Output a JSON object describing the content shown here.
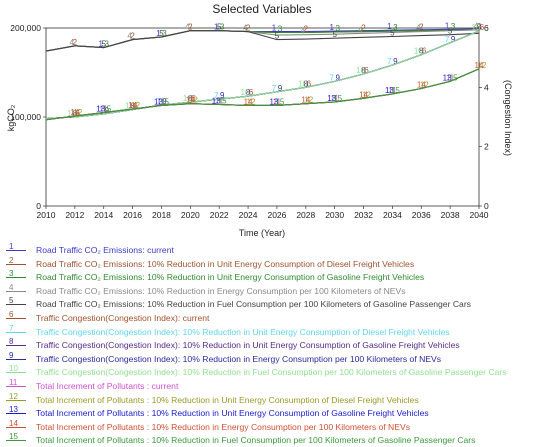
{
  "chart_data": {
    "type": "line",
    "title": "Selected Variables",
    "xlabel": "Time (Year)",
    "ylabel_left": "kgCO₂",
    "ylabel_right": "(Congestion Index)",
    "x_ticks": [
      2010,
      2012,
      2014,
      2016,
      2018,
      2020,
      2022,
      2024,
      2026,
      2028,
      2030,
      2032,
      2034,
      2036,
      2038,
      2040
    ],
    "xlim": [
      2010,
      2040
    ],
    "y_left_ticks": [
      "0",
      "100,000",
      "200,000"
    ],
    "ylim_left": [
      0,
      200000
    ],
    "y_right_ticks": [
      "0",
      "2",
      "4",
      "6"
    ],
    "ylim_right": [
      0,
      6
    ],
    "x": [
      2010,
      2012,
      2014,
      2016,
      2018,
      2020,
      2022,
      2024,
      2026,
      2028,
      2030,
      2032,
      2034,
      2036,
      2038,
      2040
    ],
    "series": [
      {
        "marker": "1",
        "name": "Road Traffic CO₂ Emissions: current",
        "color": "#3b3bc8",
        "axis": "left",
        "values": [
          174000,
          180000,
          178000,
          187000,
          190000,
          197000,
          197000,
          196000,
          196000,
          196000,
          196500,
          197000,
          197500,
          198000,
          198500,
          199000
        ]
      },
      {
        "marker": "2",
        "name": "Road Traffic CO₂ Emissions: 10% Reduction in Unit Energy Consumption of Diesel Freight Vehicles",
        "color": "#a0522d",
        "axis": "left",
        "values": [
          174000,
          180000,
          178000,
          187000,
          190000,
          197000,
          197000,
          196000,
          195000,
          195000,
          195500,
          196000,
          196500,
          197000,
          197500,
          198000
        ]
      },
      {
        "marker": "3",
        "name": "Road Traffic CO₂ Emissions: 10% Reduction in Unit Energy Consumption of Gasoline Freight Vehicles",
        "color": "#2e8b2e",
        "axis": "left",
        "values": [
          174000,
          180000,
          178000,
          187000,
          190000,
          197000,
          197000,
          196000,
          195000,
          195000,
          195500,
          196000,
          196500,
          197000,
          197500,
          198000
        ]
      },
      {
        "marker": "4",
        "name": "Road Traffic CO₂ Emissions: 10% Reduction in Energy Consumption per 100 Kilometers of NEVs",
        "color": "#8a8a8a",
        "axis": "left",
        "values": [
          174000,
          180000,
          178000,
          187000,
          190000,
          197000,
          197000,
          196000,
          192000,
          192500,
          193000,
          194000,
          195000,
          196000,
          197000,
          198000
        ]
      },
      {
        "marker": "5",
        "name": "Road Traffic CO₂ Emissions: 10% Reduction in Fuel Consumption per 100 Kilometers of Gasoline Passenger Cars",
        "color": "#444444",
        "axis": "left",
        "values": [
          174000,
          180000,
          178000,
          187000,
          190000,
          197000,
          197000,
          196000,
          187000,
          187500,
          188500,
          189500,
          190500,
          191500,
          192500,
          194000
        ]
      },
      {
        "marker": "6",
        "name": "Traffic Congestion(Congestion Index): current",
        "color": "#a0522d",
        "axis": "right",
        "values": [
          2.95,
          3.0,
          3.1,
          3.25,
          3.4,
          3.5,
          3.6,
          3.7,
          3.85,
          4.0,
          4.2,
          4.45,
          4.75,
          5.1,
          5.5,
          5.9
        ]
      },
      {
        "marker": "7",
        "name": "Traffic Congestion(Congestion Index): 10% Reduction in Unit Energy Consumption of Diesel Freight Vehicles",
        "color": "#5fd4f0",
        "axis": "right",
        "values": [
          2.95,
          3.0,
          3.1,
          3.25,
          3.4,
          3.5,
          3.6,
          3.7,
          3.85,
          4.0,
          4.2,
          4.45,
          4.75,
          5.1,
          5.5,
          5.9
        ]
      },
      {
        "marker": "8",
        "name": "Traffic Congestion(Congestion Index): 10% Reduction in Unit Energy Consumption of Gasoline Freight Vehicles",
        "color": "#5a2a8a",
        "axis": "right",
        "values": [
          2.95,
          3.0,
          3.1,
          3.25,
          3.4,
          3.5,
          3.6,
          3.7,
          3.85,
          4.0,
          4.2,
          4.45,
          4.75,
          5.1,
          5.5,
          5.9
        ]
      },
      {
        "marker": "9",
        "name": "Traffic Congestion(Congestion Index): 10% Reduction in Energy Consumption per 100 Kilometers of NEVs",
        "color": "#2a2aa0",
        "axis": "right",
        "values": [
          2.95,
          3.0,
          3.1,
          3.25,
          3.4,
          3.5,
          3.6,
          3.7,
          3.85,
          4.0,
          4.2,
          4.45,
          4.75,
          5.1,
          5.5,
          5.9
        ]
      },
      {
        "marker": "10",
        "name": "Traffic Congestion(Congestion Index): 10% Reduction in Fuel Consumption per 100 Kilometers of Gasoline Passenger Cars",
        "color": "#8fe08f",
        "axis": "right",
        "values": [
          2.95,
          3.0,
          3.1,
          3.25,
          3.4,
          3.5,
          3.6,
          3.7,
          3.85,
          4.0,
          4.2,
          4.45,
          4.75,
          5.1,
          5.5,
          5.9
        ]
      },
      {
        "marker": "11",
        "name": "Total Increment of Pollutants : current",
        "color": "#d050d0",
        "axis": "left",
        "values": [
          97000,
          101000,
          105000,
          109000,
          113000,
          115000,
          114000,
          113000,
          113000,
          115000,
          117000,
          121000,
          126000,
          132000,
          140000,
          154000
        ]
      },
      {
        "marker": "12",
        "name": "Total Increment of Pollutants : 10% Reduction in Unit Energy Consumption of Diesel Freight Vehicles",
        "color": "#9a9a2a",
        "axis": "left",
        "values": [
          97000,
          101000,
          105000,
          109000,
          113000,
          115000,
          114000,
          113000,
          113000,
          115000,
          117000,
          121000,
          126000,
          132000,
          140000,
          154000
        ]
      },
      {
        "marker": "13",
        "name": "Total Increment of Pollutants : 10% Reduction in Unit Energy Consumption of Gasoline Freight Vehicles",
        "color": "#1a1ad0",
        "axis": "left",
        "values": [
          97000,
          101000,
          105000,
          109000,
          113000,
          115000,
          114000,
          113000,
          113000,
          115000,
          117000,
          121000,
          126000,
          132000,
          140000,
          154000
        ]
      },
      {
        "marker": "14",
        "name": "Total Increment of Pollutants : 10% Reduction in Energy Consumption per 100 Kilometers of NEVs",
        "color": "#d05030",
        "axis": "left",
        "values": [
          97000,
          101000,
          105000,
          109000,
          113000,
          115000,
          114000,
          113000,
          113000,
          115000,
          117000,
          121000,
          126000,
          132000,
          140000,
          154000
        ]
      },
      {
        "marker": "15",
        "name": "Total Increment of Pollutants : 10% Reduction in Fuel Consumption per 100 Kilometers of Gasoline Passenger Cars",
        "color": "#3a9a3a",
        "axis": "left",
        "values": [
          97000,
          101000,
          105000,
          109000,
          113000,
          115000,
          114000,
          113000,
          113000,
          115000,
          117000,
          121000,
          126000,
          132000,
          140000,
          154000
        ]
      }
    ],
    "grid": false,
    "legend_placement": "bottom"
  }
}
